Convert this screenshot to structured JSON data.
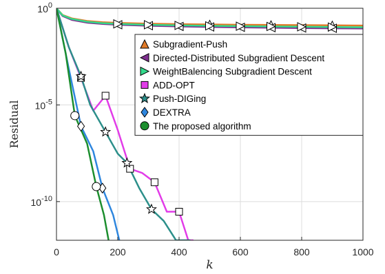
{
  "chart_data": {
    "type": "line",
    "title": "",
    "xlabel": "k",
    "ylabel": "Residual",
    "yscale": "log",
    "xlim": [
      0,
      1000
    ],
    "ylim": [
      1e-12,
      1
    ],
    "xticks": [
      0,
      200,
      400,
      600,
      800,
      1000
    ],
    "xtick_labels": [
      "0",
      "200",
      "400",
      "600",
      "800",
      "1000"
    ],
    "yticks": [
      1,
      1e-05,
      1e-10
    ],
    "ytick_labels": [
      {
        "base": "10",
        "exp": "0"
      },
      {
        "base": "10",
        "exp": "-5"
      },
      {
        "base": "10",
        "exp": "-10"
      }
    ],
    "grid": true,
    "legend_position": "upper-right",
    "series": [
      {
        "name": "Subgradient-Push",
        "color": "#E07A28",
        "marker": "triangle-up",
        "x": [
          0,
          20,
          50,
          100,
          150,
          200,
          300,
          400,
          500,
          600,
          700,
          800,
          900,
          1000
        ],
        "y": [
          1,
          0.45,
          0.3,
          0.22,
          0.19,
          0.175,
          0.16,
          0.15,
          0.145,
          0.14,
          0.137,
          0.134,
          0.131,
          0.128
        ]
      },
      {
        "name": "Directed-Distributed Subgradient Descent",
        "color": "#7E2F8E",
        "marker": "triangle-left",
        "x": [
          0,
          20,
          50,
          100,
          150,
          200,
          300,
          400,
          500,
          600,
          700,
          800,
          900,
          1000
        ],
        "y": [
          1,
          0.4,
          0.25,
          0.18,
          0.155,
          0.14,
          0.125,
          0.115,
          0.108,
          0.103,
          0.099,
          0.095,
          0.092,
          0.09
        ]
      },
      {
        "name": "WeightBalencing Subgradient Descent",
        "color": "#33D98C",
        "marker": "triangle-right",
        "x": [
          0,
          20,
          50,
          100,
          150,
          200,
          300,
          400,
          500,
          600,
          700,
          800,
          900,
          1000
        ],
        "y": [
          1,
          0.43,
          0.28,
          0.2,
          0.17,
          0.155,
          0.14,
          0.13,
          0.123,
          0.118,
          0.114,
          0.11,
          0.107,
          0.104
        ]
      },
      {
        "name": "ADD-OPT",
        "color": "#E23CE8",
        "marker": "square",
        "x": [
          0,
          40,
          80,
          120,
          160,
          200,
          240,
          280,
          320,
          360,
          400,
          430,
          445
        ],
        "y": [
          1,
          0.01,
          0.00025,
          5e-06,
          3e-05,
          5e-07,
          5e-09,
          3e-09,
          1e-09,
          3e-11,
          3e-11,
          1e-12,
          1e-12
        ]
      },
      {
        "name": "Push-DIGing",
        "color": "#2C8F8A",
        "marker": "pentagram",
        "x": [
          0,
          40,
          80,
          110,
          160,
          200,
          230,
          270,
          310,
          350,
          390,
          420,
          435
        ],
        "y": [
          1,
          0.01,
          0.0003,
          1e-05,
          4e-07,
          3e-08,
          1e-08,
          5e-10,
          4e-11,
          1e-11,
          1e-12,
          1e-12,
          1e-12
        ]
      },
      {
        "name": "DEXTRA",
        "color": "#2E86DE",
        "marker": "diamond",
        "x": [
          0,
          40,
          80,
          120,
          150,
          185,
          205
        ],
        "y": [
          1,
          0.00078,
          7.9e-07,
          4e-08,
          5e-10,
          2e-11,
          1e-12
        ]
      },
      {
        "name": "The proposed algorithm",
        "color": "#1C8E2E",
        "marker": "circle",
        "x": [
          0,
          30,
          60,
          100,
          130,
          155,
          170
        ],
        "y": [
          1,
          0.0047,
          2.8e-06,
          1e-07,
          6e-10,
          2e-11,
          1e-12
        ]
      }
    ]
  }
}
